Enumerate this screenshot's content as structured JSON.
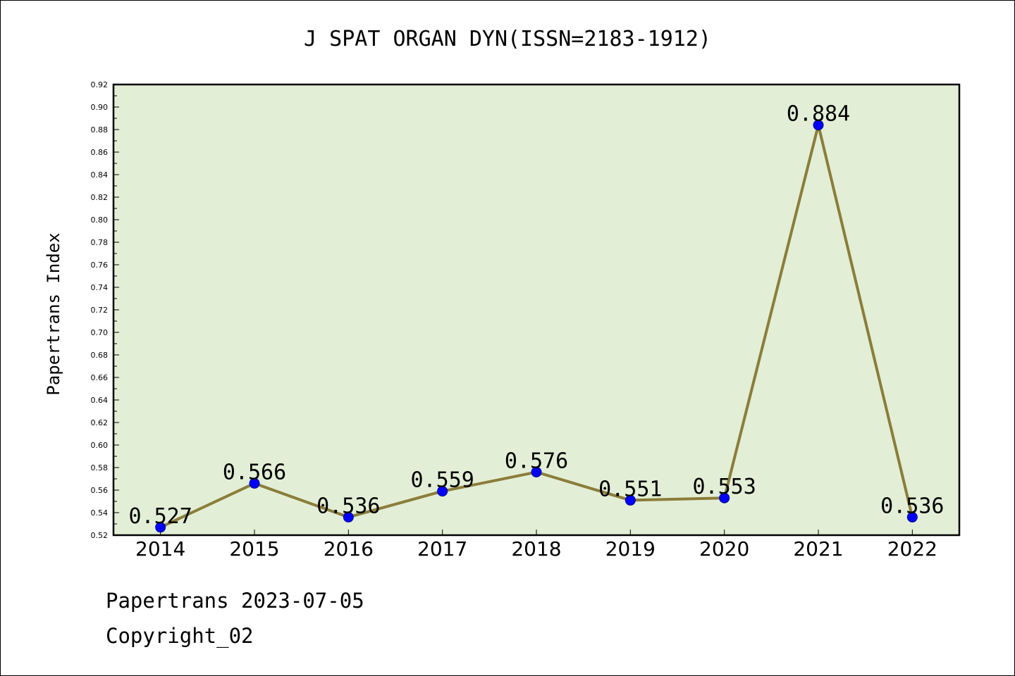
{
  "chart_data": {
    "type": "line",
    "title": "J SPAT ORGAN DYN(ISSN=2183-1912)",
    "xlabel": "",
    "ylabel": "Papertrans Index",
    "x": [
      "2014",
      "2015",
      "2016",
      "2017",
      "2018",
      "2019",
      "2020",
      "2021",
      "2022"
    ],
    "series": [
      {
        "values": [
          0.527,
          0.566,
          0.536,
          0.559,
          0.576,
          0.551,
          0.553,
          0.884,
          0.536
        ],
        "labels": [
          "0.527",
          "0.566",
          "0.536",
          "0.559",
          "0.576",
          "0.551",
          "0.553",
          "0.884",
          "0.536"
        ],
        "line_color": "#8b7d3a",
        "marker_color": "#0000ff"
      }
    ],
    "ylim": [
      0.52,
      0.92
    ],
    "ytick_step": 0.02,
    "yticks": [
      "0.52",
      "0.54",
      "0.56",
      "0.58",
      "0.60",
      "0.62",
      "0.64",
      "0.66",
      "0.68",
      "0.70",
      "0.72",
      "0.74",
      "0.76",
      "0.78",
      "0.80",
      "0.82",
      "0.84",
      "0.86",
      "0.88",
      "0.90",
      "0.92"
    ],
    "plot_background": "#e2efd6",
    "grid": false,
    "legend": "none"
  },
  "footer": {
    "date_text": "Papertrans 2023-07-05",
    "copyright_text": "Copyright_02"
  }
}
